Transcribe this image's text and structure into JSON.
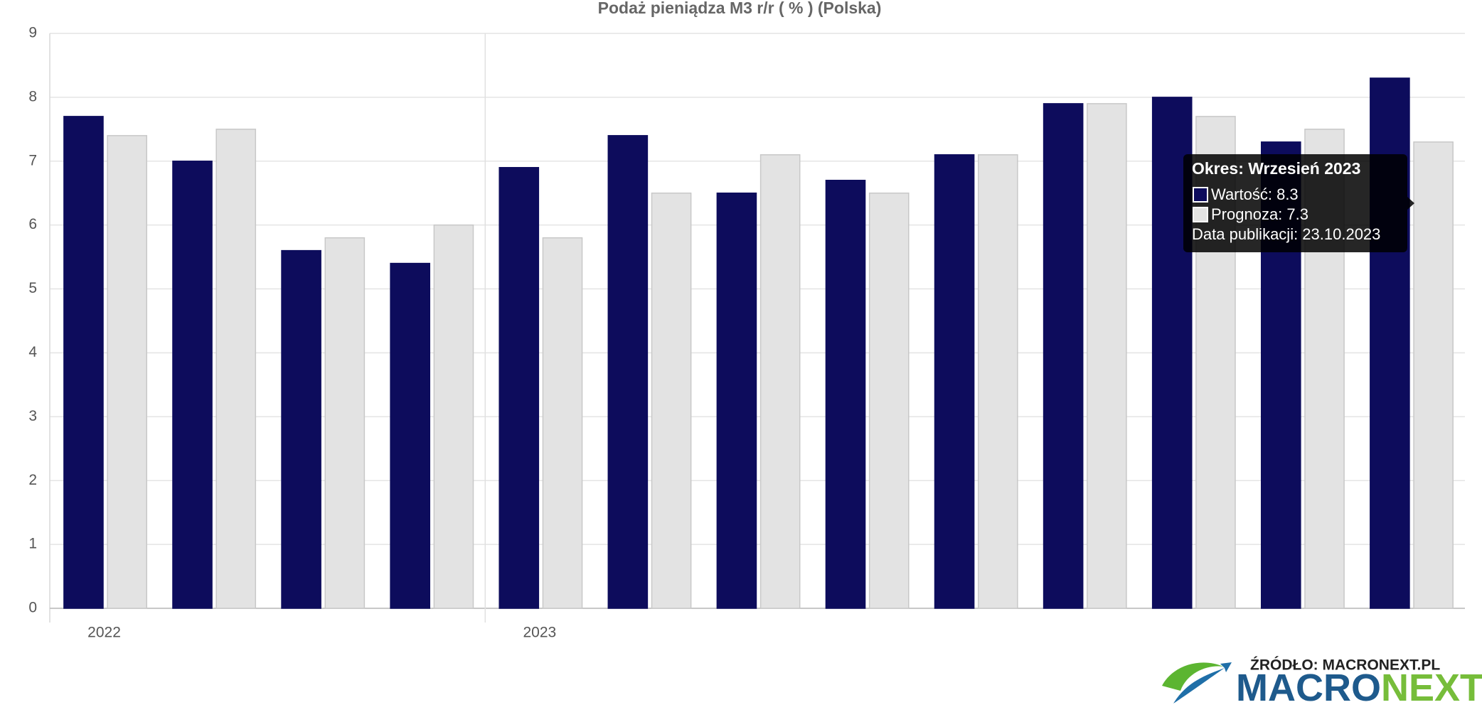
{
  "chart_data": {
    "type": "bar",
    "title": "Podaż pieniądza M3 r/r ( % ) (Polska)",
    "categories": [
      "2022",
      null,
      null,
      null,
      "2023",
      null,
      null,
      null,
      null,
      null,
      null,
      null,
      null
    ],
    "series": [
      {
        "color": "#0d0c5c",
        "values": [
          7.7,
          7.0,
          5.6,
          5.4,
          6.9,
          7.4,
          6.5,
          6.7,
          7.1,
          7.9,
          8.0,
          7.3,
          8.3
        ]
      },
      {
        "color": "#e3e3e3",
        "values": [
          7.4,
          7.5,
          5.8,
          6.0,
          5.8,
          6.5,
          7.1,
          6.5,
          7.1,
          7.9,
          7.7,
          7.5,
          7.3
        ]
      }
    ],
    "ylim": [
      0,
      9
    ],
    "yticks": [
      0,
      1,
      2,
      3,
      4,
      5,
      6,
      7,
      8,
      9
    ],
    "grid": true,
    "tooltip": {
      "title": "Okres: Wrzesień 2023",
      "items": [
        "Wartość: 8.3",
        "Prognoza: 7.3"
      ],
      "footer": "Data publikacji: 23.10.2023"
    }
  },
  "source": "ŹRÓDŁO: MACRONEXT.PL",
  "logo": {
    "left": "MACRO",
    "right": "NEXT"
  }
}
